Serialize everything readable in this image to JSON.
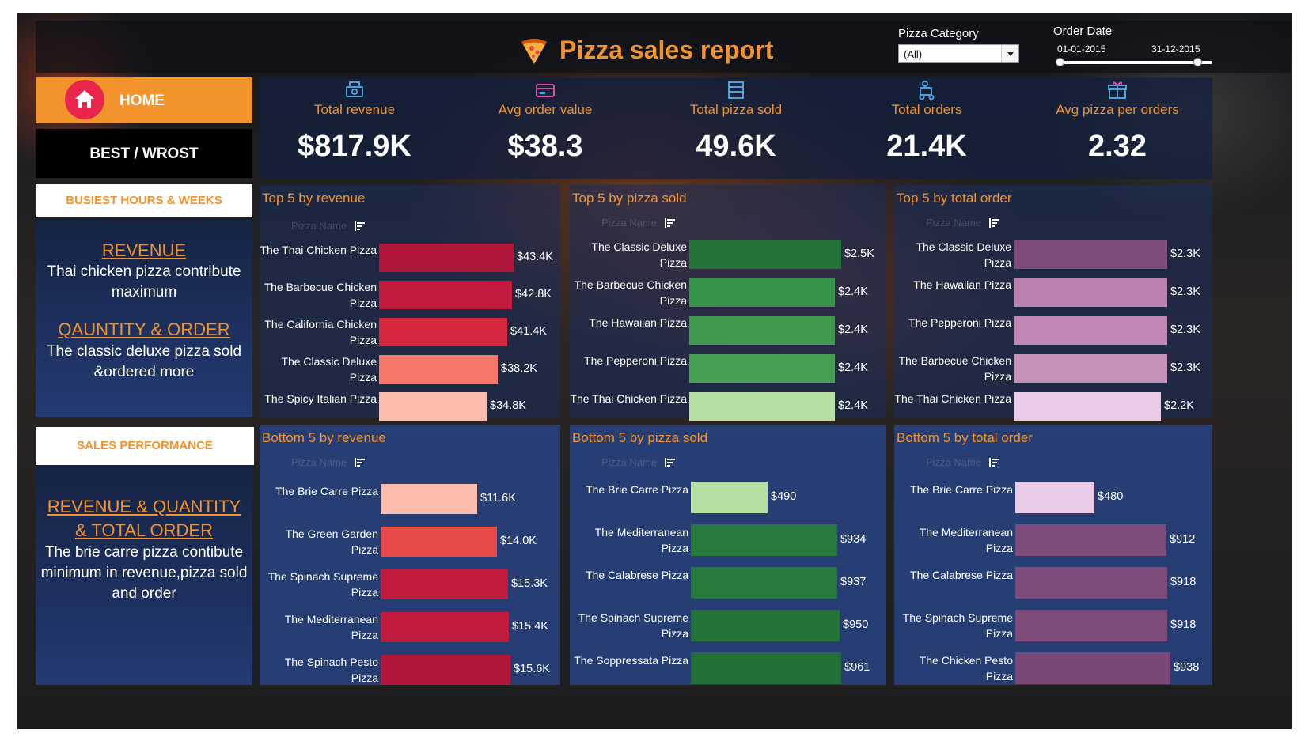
{
  "header": {
    "title": "Pizza sales report",
    "pizza_icon": "pizza-slice-icon"
  },
  "filters": {
    "category_label": "Pizza Category",
    "category_value": "(All)",
    "date_label": "Order Date",
    "date_start": "01-01-2015",
    "date_end": "31-12-2015"
  },
  "nav": {
    "home": "HOME",
    "best": "BEST / WROST"
  },
  "side": {
    "busiest_head": "BUSIEST HOURS & WEEKS",
    "revenue_h": "REVENUE",
    "revenue_t": "Thai chicken pizza contribute maximum",
    "qty_h": "QAUNTITY & ORDER",
    "qty_t": "The classic deluxe pizza sold &ordered more",
    "perf_head": "SALES PERFORMANCE",
    "perf_h": "REVENUE & QUANTITY & TOTAL ORDER",
    "perf_t": "The brie carre pizza contibute minimum in revenue,pizza sold and order"
  },
  "kpis": [
    {
      "label": "Total revenue",
      "value": "$817.9K",
      "icon": "cash-register-icon"
    },
    {
      "label": "Avg order value",
      "value": "$38.3",
      "icon": "credit-card-icon"
    },
    {
      "label": "Total pizza sold",
      "value": "49.6K",
      "icon": "pizza-box-icon"
    },
    {
      "label": "Total orders",
      "value": "21.4K",
      "icon": "delivery-icon"
    },
    {
      "label": "Avg pizza per orders",
      "value": "2.32",
      "icon": "gift-box-icon"
    }
  ],
  "panels": [
    {
      "title": "Top 5 by revenue",
      "ghost": "Pizza Name",
      "color_scheme": "red",
      "rows": [
        {
          "name": "The Thai Chicken Pizza",
          "value": 43.4,
          "label": "$43.4K",
          "color": "#b0173a"
        },
        {
          "name": "The Barbecue Chicken Pizza",
          "value": 42.8,
          "label": "$42.8K",
          "color": "#c01a3c"
        },
        {
          "name": "The California Chicken Pizza",
          "value": 41.4,
          "label": "$41.4K",
          "color": "#d6283f"
        },
        {
          "name": "The Classic Deluxe Pizza",
          "value": 38.2,
          "label": "$38.2K",
          "color": "#f4796a"
        },
        {
          "name": "The Spicy Italian Pizza",
          "value": 34.8,
          "label": "$34.8K",
          "color": "#fbbcab"
        }
      ]
    },
    {
      "title": "Top 5 by pizza sold",
      "ghost": "Pizza Name",
      "color_scheme": "green",
      "rows": [
        {
          "name": "The Classic Deluxe Pizza",
          "value": 2.5,
          "label": "$2.5K",
          "color": "#24743a"
        },
        {
          "name": "The Barbecue Chicken Pizza",
          "value": 2.4,
          "label": "$2.4K",
          "color": "#37924a"
        },
        {
          "name": "The Hawaiian Pizza",
          "value": 2.4,
          "label": "$2.4K",
          "color": "#3f9a4e"
        },
        {
          "name": "The Pepperoni Pizza",
          "value": 2.4,
          "label": "$2.4K",
          "color": "#48a052"
        },
        {
          "name": "The Thai Chicken Pizza",
          "value": 2.4,
          "label": "$2.4K",
          "color": "#b5e0a2"
        }
      ]
    },
    {
      "title": "Top 5 by total order",
      "ghost": "Pizza Name",
      "color_scheme": "purple",
      "rows": [
        {
          "name": "The Classic Deluxe Pizza",
          "value": 2.3,
          "label": "$2.3K",
          "color": "#7f4b7b"
        },
        {
          "name": "The Hawaiian Pizza",
          "value": 2.3,
          "label": "$2.3K",
          "color": "#bb82ad"
        },
        {
          "name": "The Pepperoni Pizza",
          "value": 2.3,
          "label": "$2.3K",
          "color": "#bf87b1"
        },
        {
          "name": "The Barbecue Chicken Pizza",
          "value": 2.3,
          "label": "$2.3K",
          "color": "#c690b9"
        },
        {
          "name": "The Thai Chicken Pizza",
          "value": 2.2,
          "label": "$2.2K",
          "color": "#eacbe7"
        }
      ]
    },
    {
      "title": "Bottom 5 by revenue",
      "ghost": "Pizza Name",
      "color_scheme": "red",
      "rows": [
        {
          "name": "The Brie Carre Pizza",
          "value": 11.6,
          "label": "$11.6K",
          "color": "#fbbcab"
        },
        {
          "name": "The Green Garden Pizza",
          "value": 14.0,
          "label": "$14.0K",
          "color": "#e84a4a"
        },
        {
          "name": "The Spinach Supreme Pizza",
          "value": 15.3,
          "label": "$15.3K",
          "color": "#c01a3c"
        },
        {
          "name": "The Mediterranean Pizza",
          "value": 15.4,
          "label": "$15.4K",
          "color": "#c01a3c"
        },
        {
          "name": "The Spinach Pesto Pizza",
          "value": 15.6,
          "label": "$15.6K",
          "color": "#b0173a"
        }
      ]
    },
    {
      "title": "Bottom 5 by pizza sold",
      "ghost": "Pizza Name",
      "color_scheme": "green",
      "rows": [
        {
          "name": "The Brie Carre Pizza",
          "value": 490,
          "label": "$490",
          "color": "#b5e0a2"
        },
        {
          "name": "The Mediterranean Pizza",
          "value": 934,
          "label": "$934",
          "color": "#277a3e"
        },
        {
          "name": "The Calabrese Pizza",
          "value": 937,
          "label": "$937",
          "color": "#267a3d"
        },
        {
          "name": "The Spinach Supreme Pizza",
          "value": 950,
          "label": "$950",
          "color": "#24743a"
        },
        {
          "name": "The Soppressata Pizza",
          "value": 961,
          "label": "$961",
          "color": "#236f38"
        }
      ]
    },
    {
      "title": "Bottom 5 by total order",
      "ghost": "Pizza Name",
      "color_scheme": "purple",
      "rows": [
        {
          "name": "The Brie Carre Pizza",
          "value": 480,
          "label": "$480",
          "color": "#eacbe7"
        },
        {
          "name": "The Mediterranean Pizza",
          "value": 912,
          "label": "$912",
          "color": "#7f4b7b"
        },
        {
          "name": "The Calabrese Pizza",
          "value": 918,
          "label": "$918",
          "color": "#7f4b7b"
        },
        {
          "name": "The Spinach Supreme Pizza",
          "value": 918,
          "label": "$918",
          "color": "#7f4b7b"
        },
        {
          "name": "The Chicken Pesto Pizza",
          "value": 938,
          "label": "$938",
          "color": "#7a4676"
        }
      ]
    }
  ]
}
